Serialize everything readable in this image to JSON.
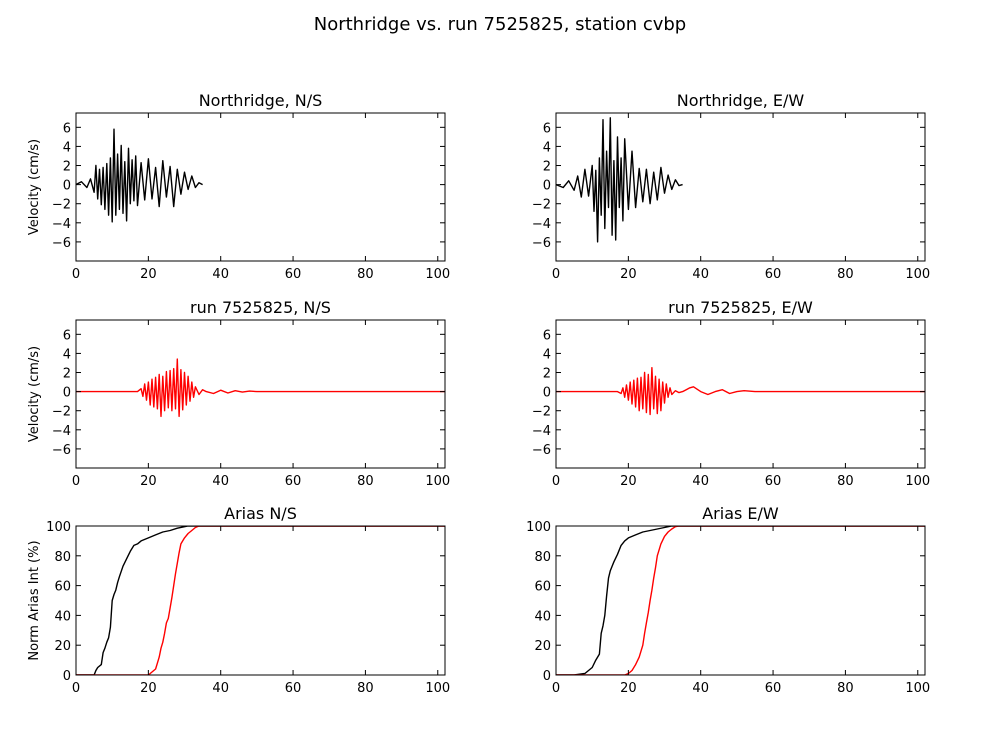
{
  "figure": {
    "title": "Northridge vs. run 7525825, station cvbp"
  },
  "chart_data": [
    {
      "type": "line",
      "title": "Northridge, N/S",
      "ylabel": "Velocity (cm/s)",
      "xlim": [
        0,
        102
      ],
      "ylim": [
        -8,
        7.5
      ],
      "xticks": [
        0,
        20,
        40,
        60,
        80,
        100
      ],
      "yticks": [
        -6,
        -4,
        -2,
        0,
        2,
        4,
        6
      ],
      "series": [
        {
          "color": "#000000",
          "x": [
            0,
            1.5,
            3,
            4,
            5,
            5.5,
            6,
            6.5,
            7,
            7.5,
            8,
            8.5,
            9,
            9.5,
            10,
            10.5,
            11,
            11.5,
            12,
            12.5,
            13,
            13.5,
            14,
            14.5,
            15,
            15.5,
            16,
            16.5,
            17,
            18,
            19,
            20,
            21,
            22,
            23,
            24,
            25,
            26,
            27,
            28,
            29,
            30,
            31,
            32,
            33,
            34,
            35
          ],
          "y": [
            0,
            0.3,
            -0.3,
            0.6,
            -0.8,
            2.0,
            -1.5,
            1.6,
            -2.1,
            1.8,
            -2.6,
            2.2,
            -3.2,
            2.8,
            -3.9,
            5.8,
            -3.2,
            3.2,
            -2.6,
            4.1,
            -3.0,
            2.4,
            -3.8,
            3.8,
            -2.0,
            2.6,
            -1.7,
            3.0,
            -2.2,
            2.3,
            -1.6,
            2.7,
            -1.5,
            1.8,
            -2.3,
            2.5,
            -1.3,
            1.9,
            -2.3,
            1.6,
            -1.0,
            1.3,
            -0.5,
            0.9,
            -0.3,
            0.2,
            0.0
          ]
        }
      ]
    },
    {
      "type": "line",
      "title": "Northridge, E/W",
      "ylabel": "",
      "xlim": [
        0,
        102
      ],
      "ylim": [
        -8,
        7.5
      ],
      "xticks": [
        0,
        20,
        40,
        60,
        80,
        100
      ],
      "yticks": [
        -6,
        -4,
        -2,
        0,
        2,
        4,
        6
      ],
      "series": [
        {
          "color": "#000000",
          "x": [
            0,
            2,
            3.5,
            5,
            6,
            7,
            8,
            9,
            10,
            10.5,
            11,
            11.5,
            12,
            12.5,
            13,
            13.5,
            14,
            14.5,
            15,
            15.5,
            16,
            16.5,
            17,
            17.5,
            18,
            18.5,
            19,
            20,
            21,
            22,
            23,
            24,
            25,
            26,
            27,
            28,
            29,
            30,
            31,
            32,
            33,
            34,
            35
          ],
          "y": [
            0,
            -0.3,
            0.4,
            -0.6,
            0.9,
            -1.3,
            1.6,
            -1.2,
            2.0,
            -2.8,
            1.5,
            -6.0,
            2.8,
            -3.2,
            6.8,
            -4.6,
            3.5,
            -2.4,
            7.0,
            -5.3,
            2.5,
            -5.8,
            5.0,
            -2.4,
            2.8,
            -3.8,
            4.8,
            -2.6,
            3.5,
            -2.4,
            1.7,
            -1.8,
            1.6,
            -2.0,
            1.3,
            -1.6,
            1.8,
            -0.9,
            1.0,
            -0.5,
            0.5,
            -0.1,
            0.0
          ]
        }
      ]
    },
    {
      "type": "line",
      "title": "run 7525825, N/S",
      "ylabel": "Velocity (cm/s)",
      "xlim": [
        0,
        102
      ],
      "ylim": [
        -8,
        7.5
      ],
      "xticks": [
        0,
        20,
        40,
        60,
        80,
        100
      ],
      "yticks": [
        -6,
        -4,
        -2,
        0,
        2,
        4,
        6
      ],
      "series": [
        {
          "color": "#ff0000",
          "x": [
            0,
            17,
            18,
            18.5,
            19,
            19.5,
            20,
            20.5,
            21,
            21.5,
            22,
            22.5,
            23,
            23.5,
            24,
            24.5,
            25,
            25.5,
            26,
            26.5,
            27,
            27.5,
            28,
            28.5,
            29,
            29.5,
            30,
            30.5,
            31,
            31.5,
            32,
            32.5,
            33,
            34,
            35,
            36,
            38,
            40,
            42,
            44,
            46,
            48,
            50,
            52,
            55,
            60,
            102
          ],
          "y": [
            0,
            0,
            0.3,
            -0.5,
            0.8,
            -0.9,
            1.0,
            -1.4,
            1.3,
            -1.6,
            1.5,
            -1.8,
            1.8,
            -2.6,
            1.6,
            -2.0,
            2.1,
            -1.7,
            2.2,
            -2.0,
            2.4,
            -1.8,
            3.4,
            -2.6,
            2.3,
            -1.9,
            2.0,
            -1.4,
            1.6,
            -1.0,
            1.0,
            -0.6,
            0.5,
            -0.3,
            0.2,
            0.0,
            -0.2,
            0.15,
            -0.15,
            0.1,
            -0.05,
            0.05,
            0.0,
            0.0,
            0.0,
            0.0,
            0.0
          ]
        }
      ]
    },
    {
      "type": "line",
      "title": "run 7525825, E/W",
      "ylabel": "",
      "xlim": [
        0,
        102
      ],
      "ylim": [
        -8,
        7.5
      ],
      "xticks": [
        0,
        20,
        40,
        60,
        80,
        100
      ],
      "yticks": [
        -6,
        -4,
        -2,
        0,
        2,
        4,
        6
      ],
      "series": [
        {
          "color": "#ff0000",
          "x": [
            0,
            17,
            18,
            18.5,
            19,
            19.5,
            20,
            20.5,
            21,
            21.5,
            22,
            22.5,
            23,
            23.5,
            24,
            24.5,
            25,
            25.5,
            26,
            26.5,
            27,
            27.5,
            28,
            28.5,
            29,
            29.5,
            30,
            30.5,
            31,
            31.5,
            32,
            33,
            34,
            35,
            36,
            37,
            38,
            40,
            42,
            44,
            46,
            48,
            50,
            52,
            55,
            60,
            102
          ],
          "y": [
            0,
            0,
            -0.2,
            0.4,
            -0.6,
            0.7,
            -0.9,
            1.0,
            -1.3,
            1.2,
            -1.6,
            1.4,
            -2.0,
            1.5,
            -1.8,
            2.0,
            -2.2,
            1.8,
            -2.4,
            2.5,
            -1.8,
            1.6,
            -2.3,
            1.3,
            -2.0,
            1.0,
            -1.2,
            0.8,
            -0.6,
            0.4,
            -0.3,
            0.1,
            -0.1,
            0.0,
            0.2,
            0.4,
            0.5,
            0.0,
            -0.3,
            0.0,
            0.2,
            -0.2,
            0.0,
            0.1,
            0.0,
            0.0,
            0.0
          ]
        }
      ]
    },
    {
      "type": "line",
      "title": "Arias N/S",
      "ylabel": "Norm Arias Int (%)",
      "xlim": [
        0,
        102
      ],
      "ylim": [
        0,
        100
      ],
      "xticks": [
        0,
        20,
        40,
        60,
        80,
        100
      ],
      "yticks": [
        0,
        20,
        40,
        60,
        80,
        100
      ],
      "series": [
        {
          "color": "#000000",
          "x": [
            0,
            5,
            5.5,
            6,
            7,
            7.5,
            8,
            8.5,
            9,
            9.5,
            10,
            10.5,
            11,
            11.5,
            12,
            13,
            14,
            15,
            16,
            17,
            18,
            20,
            22,
            24,
            26,
            28,
            30,
            31,
            32,
            102
          ],
          "y": [
            0,
            0,
            3,
            5,
            7,
            15,
            18,
            22,
            25,
            32,
            50,
            54,
            57,
            62,
            66,
            73,
            78,
            83,
            87,
            88,
            90,
            92,
            94,
            96,
            97,
            98.5,
            99.5,
            100,
            100,
            100
          ]
        },
        {
          "color": "#ff0000",
          "x": [
            0,
            20,
            21,
            22,
            22.5,
            23,
            23.5,
            24,
            24.5,
            25,
            25.5,
            26,
            26.5,
            27,
            27.5,
            28,
            28.5,
            29,
            30,
            31,
            32,
            33,
            34,
            102
          ],
          "y": [
            0,
            0,
            2,
            4,
            8,
            12,
            18,
            22,
            28,
            35,
            38,
            45,
            52,
            60,
            68,
            75,
            82,
            88,
            92,
            95,
            97,
            99,
            100,
            100
          ]
        }
      ]
    },
    {
      "type": "line",
      "title": "Arias E/W",
      "ylabel": "",
      "xlim": [
        0,
        102
      ],
      "ylim": [
        0,
        100
      ],
      "xticks": [
        0,
        20,
        40,
        60,
        80,
        100
      ],
      "yticks": [
        0,
        20,
        40,
        60,
        80,
        100
      ],
      "series": [
        {
          "color": "#000000",
          "x": [
            0,
            5,
            8,
            10,
            11,
            12,
            12.5,
            13,
            13.5,
            14,
            14.5,
            15,
            15.5,
            16,
            17,
            18,
            19,
            20,
            22,
            24,
            26,
            28,
            30,
            32,
            34,
            102
          ],
          "y": [
            0,
            0,
            1,
            5,
            10,
            14,
            28,
            33,
            40,
            53,
            65,
            70,
            73,
            76,
            81,
            87,
            90,
            92,
            94,
            96,
            97,
            98,
            99,
            100,
            100,
            100
          ]
        },
        {
          "color": "#ff0000",
          "x": [
            0,
            19,
            20,
            21,
            22,
            23,
            24,
            24.5,
            25,
            25.5,
            26,
            26.5,
            27,
            27.5,
            28,
            29,
            30,
            31,
            32,
            33,
            34,
            102
          ],
          "y": [
            0,
            0,
            1,
            3,
            7,
            12,
            20,
            28,
            35,
            42,
            50,
            57,
            65,
            72,
            80,
            88,
            93,
            96,
            98,
            99.5,
            100,
            100
          ]
        }
      ]
    }
  ]
}
